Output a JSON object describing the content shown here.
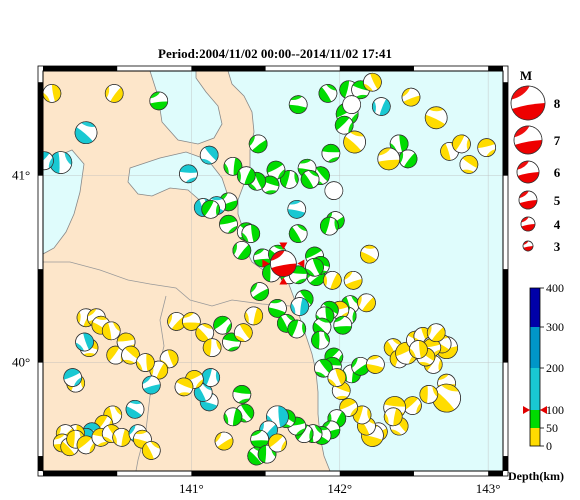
{
  "title": "Period:2004/11/02 00:00--2014/11/02 17:41",
  "lon_labels": [
    "141°",
    "142°",
    "143°"
  ],
  "lat_labels": [
    "41°",
    "40°"
  ],
  "magnitude": {
    "heading": "M",
    "values": [
      "8",
      "7",
      "6",
      "5",
      "4",
      "3"
    ]
  },
  "depth_scale": {
    "title": "Depth(km)",
    "labels": [
      "400",
      "300",
      "200",
      "100",
      "50",
      "0"
    ],
    "band_colors": [
      "#0000a8",
      "#0096c8",
      "#19c8d2",
      "#00dc00",
      "#ffdc00"
    ],
    "marker_color": "#e00000"
  },
  "colors": {
    "sea": "#dffcfc",
    "land": "#fde6ca",
    "coast": "#888888",
    "frame": "#000000",
    "main_event": "#ee0000",
    "shallow": "#ffdc00",
    "mid": "#00dc00",
    "deep": "#19c8d2"
  },
  "main_event": {
    "lon": 141.62,
    "lat": 40.53,
    "depth_km": 100,
    "magnitude": 5
  },
  "events": [
    [
      140.06,
      41.44,
      "y",
      2
    ],
    [
      140.48,
      41.44,
      "y",
      2
    ],
    [
      140.78,
      41.4,
      "g",
      2
    ],
    [
      140.29,
      41.23,
      "c",
      3
    ],
    [
      140.12,
      41.07,
      "c",
      3
    ],
    [
      140.01,
      41.08,
      "c",
      2
    ],
    [
      140.98,
      41.01,
      "c",
      2
    ],
    [
      141.12,
      41.11,
      "c",
      2
    ],
    [
      141.28,
      41.05,
      "g",
      2
    ],
    [
      141.45,
      41.17,
      "g",
      2
    ],
    [
      141.72,
      41.38,
      "g",
      2
    ],
    [
      141.92,
      41.44,
      "g",
      2
    ],
    [
      142.06,
      41.46,
      "g",
      2
    ],
    [
      142.05,
      41.33,
      "g",
      3
    ],
    [
      142.14,
      41.46,
      "g",
      2
    ],
    [
      142.22,
      41.5,
      "y",
      2
    ],
    [
      142.28,
      41.37,
      "c",
      2
    ],
    [
      142.48,
      41.42,
      "y",
      2
    ],
    [
      142.65,
      41.31,
      "y",
      3
    ],
    [
      142.74,
      41.13,
      "y",
      2
    ],
    [
      142.82,
      41.17,
      "y",
      2
    ],
    [
      142.99,
      41.15,
      "y",
      2
    ],
    [
      142.87,
      41.06,
      "y",
      2
    ],
    [
      142.4,
      41.17,
      "g",
      2
    ],
    [
      142.46,
      41.09,
      "g",
      2
    ],
    [
      142.33,
      41.09,
      "y",
      3
    ],
    [
      142.1,
      41.18,
      "y",
      3
    ],
    [
      142.08,
      41.38,
      "w",
      2
    ],
    [
      142.03,
      41.27,
      "g",
      2
    ],
    [
      141.94,
      41.12,
      "g",
      2
    ],
    [
      141.87,
      41.0,
      "g",
      2
    ],
    [
      141.96,
      40.92,
      "w",
      2
    ],
    [
      141.97,
      40.76,
      "g",
      2
    ],
    [
      141.78,
      41.04,
      "g",
      2
    ],
    [
      141.8,
      40.98,
      "g",
      2
    ],
    [
      141.66,
      40.98,
      "g",
      2
    ],
    [
      141.57,
      41.03,
      "g",
      2
    ],
    [
      141.53,
      40.95,
      "g",
      2
    ],
    [
      141.44,
      40.97,
      "g",
      2
    ],
    [
      141.37,
      41.0,
      "g",
      2
    ],
    [
      141.25,
      40.86,
      "g",
      2
    ],
    [
      141.17,
      40.84,
      "c",
      2
    ],
    [
      141.08,
      40.83,
      "c",
      2
    ],
    [
      141.13,
      40.82,
      "g",
      2
    ],
    [
      141.25,
      40.74,
      "g",
      2
    ],
    [
      141.37,
      40.7,
      "g",
      2
    ],
    [
      141.4,
      40.69,
      "g",
      2
    ],
    [
      141.34,
      40.6,
      "g",
      2
    ],
    [
      141.48,
      40.56,
      "g",
      2
    ],
    [
      141.58,
      40.58,
      "g",
      2
    ],
    [
      141.54,
      40.48,
      "g",
      2
    ],
    [
      141.66,
      40.47,
      "g",
      2
    ],
    [
      141.72,
      40.47,
      "g",
      2
    ],
    [
      141.76,
      40.34,
      "g",
      2
    ],
    [
      141.73,
      40.3,
      "c",
      2
    ],
    [
      141.84,
      40.46,
      "g",
      2
    ],
    [
      141.71,
      40.82,
      "c",
      2
    ],
    [
      141.72,
      40.69,
      "g",
      2
    ],
    [
      141.93,
      40.73,
      "g",
      2
    ],
    [
      141.83,
      40.57,
      "g",
      2
    ],
    [
      141.87,
      40.52,
      "g",
      2
    ],
    [
      141.83,
      40.51,
      "g",
      2
    ],
    [
      141.95,
      40.44,
      "y",
      2
    ],
    [
      142.09,
      40.44,
      "y",
      2
    ],
    [
      142.2,
      40.58,
      "y",
      2
    ],
    [
      142.07,
      40.31,
      "g",
      2
    ],
    [
      142.05,
      40.25,
      "g",
      2
    ],
    [
      142.0,
      40.28,
      "y",
      2
    ],
    [
      141.93,
      40.28,
      "g",
      2
    ],
    [
      141.9,
      40.25,
      "g",
      2
    ],
    [
      142.18,
      40.32,
      "y",
      2
    ],
    [
      142.02,
      40.2,
      "g",
      2
    ],
    [
      141.88,
      40.19,
      "g",
      2
    ],
    [
      141.87,
      40.12,
      "g",
      2
    ],
    [
      141.96,
      40.03,
      "g",
      2
    ],
    [
      141.95,
      39.98,
      "g",
      2
    ],
    [
      141.89,
      39.97,
      "g",
      2
    ],
    [
      142.08,
      39.94,
      "g",
      2
    ],
    [
      142.14,
      39.98,
      "g",
      2
    ],
    [
      142.24,
      39.99,
      "y",
      2
    ],
    [
      142.36,
      40.08,
      "y",
      2
    ],
    [
      142.4,
      40.02,
      "y",
      2
    ],
    [
      142.45,
      40.05,
      "y",
      3
    ],
    [
      142.51,
      40.12,
      "y",
      2
    ],
    [
      142.56,
      40.14,
      "y",
      2
    ],
    [
      142.62,
      40.09,
      "y",
      2
    ],
    [
      142.72,
      40.08,
      "y",
      3
    ],
    [
      142.69,
      40.1,
      "y",
      2
    ],
    [
      142.58,
      40.05,
      "y",
      3
    ],
    [
      142.63,
      39.99,
      "y",
      2
    ],
    [
      142.62,
      40.08,
      "y",
      2
    ],
    [
      142.58,
      40.03,
      "y",
      2
    ],
    [
      142.53,
      40.07,
      "y",
      2
    ],
    [
      142.65,
      40.16,
      "y",
      2
    ],
    [
      142.72,
      39.89,
      "y",
      2
    ],
    [
      142.72,
      39.81,
      "y",
      4
    ],
    [
      142.6,
      39.83,
      "y",
      2
    ],
    [
      142.49,
      39.77,
      "y",
      2
    ],
    [
      142.37,
      39.76,
      "y",
      3
    ],
    [
      142.4,
      39.66,
      "y",
      2
    ],
    [
      142.36,
      39.71,
      "y",
      2
    ],
    [
      142.26,
      39.63,
      "y",
      2
    ],
    [
      142.22,
      39.61,
      "y",
      3
    ],
    [
      142.18,
      39.66,
      "y",
      2
    ],
    [
      142.15,
      39.72,
      "y",
      2
    ],
    [
      142.06,
      39.76,
      "y",
      2
    ],
    [
      142.01,
      39.85,
      "y",
      2
    ],
    [
      141.98,
      39.92,
      "y",
      2
    ],
    [
      141.98,
      39.7,
      "g",
      2
    ],
    [
      141.94,
      39.64,
      "g",
      2
    ],
    [
      141.88,
      39.61,
      "g",
      2
    ],
    [
      141.82,
      39.62,
      "g",
      2
    ],
    [
      141.76,
      39.62,
      "g",
      2
    ],
    [
      141.71,
      39.66,
      "g",
      2
    ],
    [
      141.64,
      39.7,
      "g",
      2
    ],
    [
      141.58,
      39.71,
      "c",
      3
    ],
    [
      141.52,
      39.64,
      "c",
      2
    ],
    [
      141.46,
      39.59,
      "g",
      2
    ],
    [
      141.44,
      39.5,
      "g",
      2
    ],
    [
      141.51,
      39.51,
      "g",
      2
    ],
    [
      141.58,
      39.57,
      "y",
      2
    ],
    [
      141.34,
      39.83,
      "g",
      2
    ],
    [
      141.36,
      39.73,
      "g",
      2
    ],
    [
      141.28,
      39.71,
      "g",
      2
    ],
    [
      141.22,
      39.58,
      "y",
      2
    ],
    [
      141.12,
      39.79,
      "c",
      2
    ],
    [
      141.08,
      39.84,
      "c",
      2
    ],
    [
      141.13,
      39.92,
      "c",
      2
    ],
    [
      141.02,
      39.91,
      "y",
      2
    ],
    [
      140.95,
      39.87,
      "y",
      2
    ],
    [
      140.85,
      40.02,
      "y",
      2
    ],
    [
      140.78,
      39.96,
      "y",
      2
    ],
    [
      140.73,
      39.88,
      "c",
      2
    ],
    [
      140.62,
      39.75,
      "c",
      2
    ],
    [
      140.47,
      39.72,
      "y",
      2
    ],
    [
      140.41,
      39.67,
      "y",
      2
    ],
    [
      140.33,
      39.63,
      "c",
      2
    ],
    [
      140.29,
      39.6,
      "c",
      2
    ],
    [
      140.22,
      39.62,
      "y",
      2
    ],
    [
      140.15,
      39.62,
      "y",
      2
    ],
    [
      140.13,
      39.57,
      "y",
      2
    ],
    [
      140.18,
      39.55,
      "y",
      2
    ],
    [
      140.22,
      39.59,
      "y",
      2
    ],
    [
      140.29,
      39.56,
      "y",
      2
    ],
    [
      140.39,
      39.6,
      "y",
      2
    ],
    [
      140.46,
      39.62,
      "y",
      2
    ],
    [
      140.53,
      39.6,
      "y",
      2
    ],
    [
      140.64,
      39.62,
      "c",
      2
    ],
    [
      140.67,
      39.59,
      "y",
      2
    ],
    [
      140.73,
      39.53,
      "y",
      2
    ],
    [
      140.22,
      39.89,
      "y",
      2
    ],
    [
      140.2,
      39.92,
      "c",
      2
    ],
    [
      140.31,
      40.08,
      "y",
      2
    ],
    [
      140.28,
      40.11,
      "c",
      2
    ],
    [
      140.29,
      40.24,
      "y",
      2
    ],
    [
      140.36,
      40.24,
      "y",
      2
    ],
    [
      140.39,
      40.2,
      "y",
      2
    ],
    [
      140.46,
      40.17,
      "y",
      2
    ],
    [
      140.49,
      40.04,
      "y",
      2
    ],
    [
      140.56,
      40.11,
      "y",
      2
    ],
    [
      140.59,
      40.04,
      "y",
      2
    ],
    [
      140.69,
      40.0,
      "y",
      2
    ],
    [
      140.9,
      40.22,
      "y",
      2
    ],
    [
      141.0,
      40.22,
      "y",
      2
    ],
    [
      141.09,
      40.16,
      "y",
      2
    ],
    [
      141.14,
      40.08,
      "y",
      2
    ],
    [
      141.21,
      40.2,
      "g",
      2
    ],
    [
      141.27,
      40.11,
      "g",
      2
    ],
    [
      141.35,
      40.16,
      "y",
      2
    ],
    [
      141.42,
      40.25,
      "y",
      2
    ],
    [
      141.46,
      40.38,
      "g",
      2
    ],
    [
      141.58,
      40.29,
      "g",
      2
    ],
    [
      141.64,
      40.21,
      "g",
      2
    ],
    [
      141.71,
      40.18,
      "g",
      2
    ]
  ]
}
